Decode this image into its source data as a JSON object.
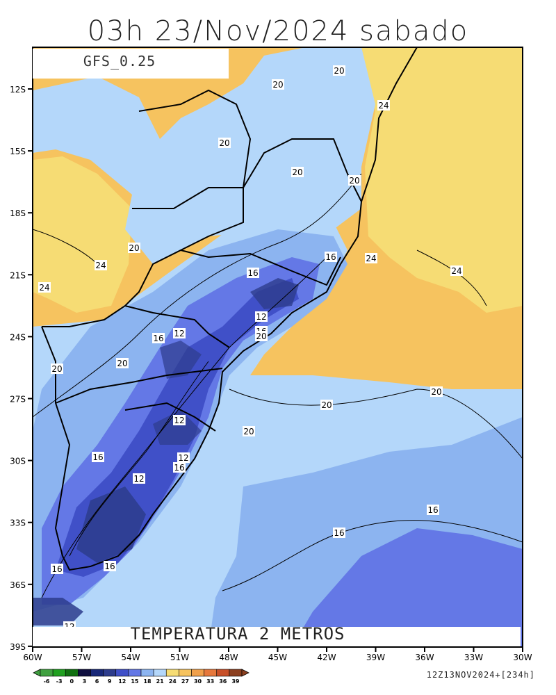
{
  "title": "03h 23/Nov/2024 sabado",
  "model": "GFS_0.25",
  "variable": "TEMPERATURA 2 METROS",
  "run_info": "12Z13NOV2024+[234h]",
  "axes": {
    "lat_labels": [
      "12S",
      "15S",
      "18S",
      "21S",
      "24S",
      "27S",
      "30S",
      "33S",
      "36S",
      "39S"
    ],
    "lon_labels": [
      "60W",
      "57W",
      "54W",
      "51W",
      "48W",
      "45W",
      "42W",
      "39W",
      "36W",
      "33W",
      "30W"
    ]
  },
  "contour_labels": [
    "20",
    "24",
    "20",
    "20",
    "20",
    "20",
    "24",
    "24",
    "20",
    "24",
    "16",
    "24",
    "16",
    "12",
    "16",
    "20",
    "16",
    "12",
    "20",
    "20",
    "20",
    "20",
    "12",
    "20",
    "16",
    "12",
    "16",
    "12",
    "16",
    "16",
    "16",
    "16",
    "12"
  ],
  "colorbar": {
    "labels": [
      "-6",
      "-3",
      "0",
      "3",
      "6",
      "9",
      "12",
      "15",
      "18",
      "21",
      "24",
      "27",
      "30",
      "33",
      "36",
      "39"
    ],
    "colors": [
      "#40a040",
      "#20a020",
      "#107010",
      "#101040",
      "#182878",
      "#2d3c8c",
      "#4050c8",
      "#6478e6",
      "#8cb4f0",
      "#b4d7fa",
      "#f6dc74",
      "#f6c35f",
      "#f0a04b",
      "#e6783c",
      "#c85028",
      "#8c4020"
    ]
  },
  "legend_colors": {
    "t12": "#4050c8",
    "t15": "#6478e6",
    "t18": "#8cb4f0",
    "t21": "#b4d7fa",
    "t24": "#f6dc74",
    "t27": "#f6c35f"
  }
}
